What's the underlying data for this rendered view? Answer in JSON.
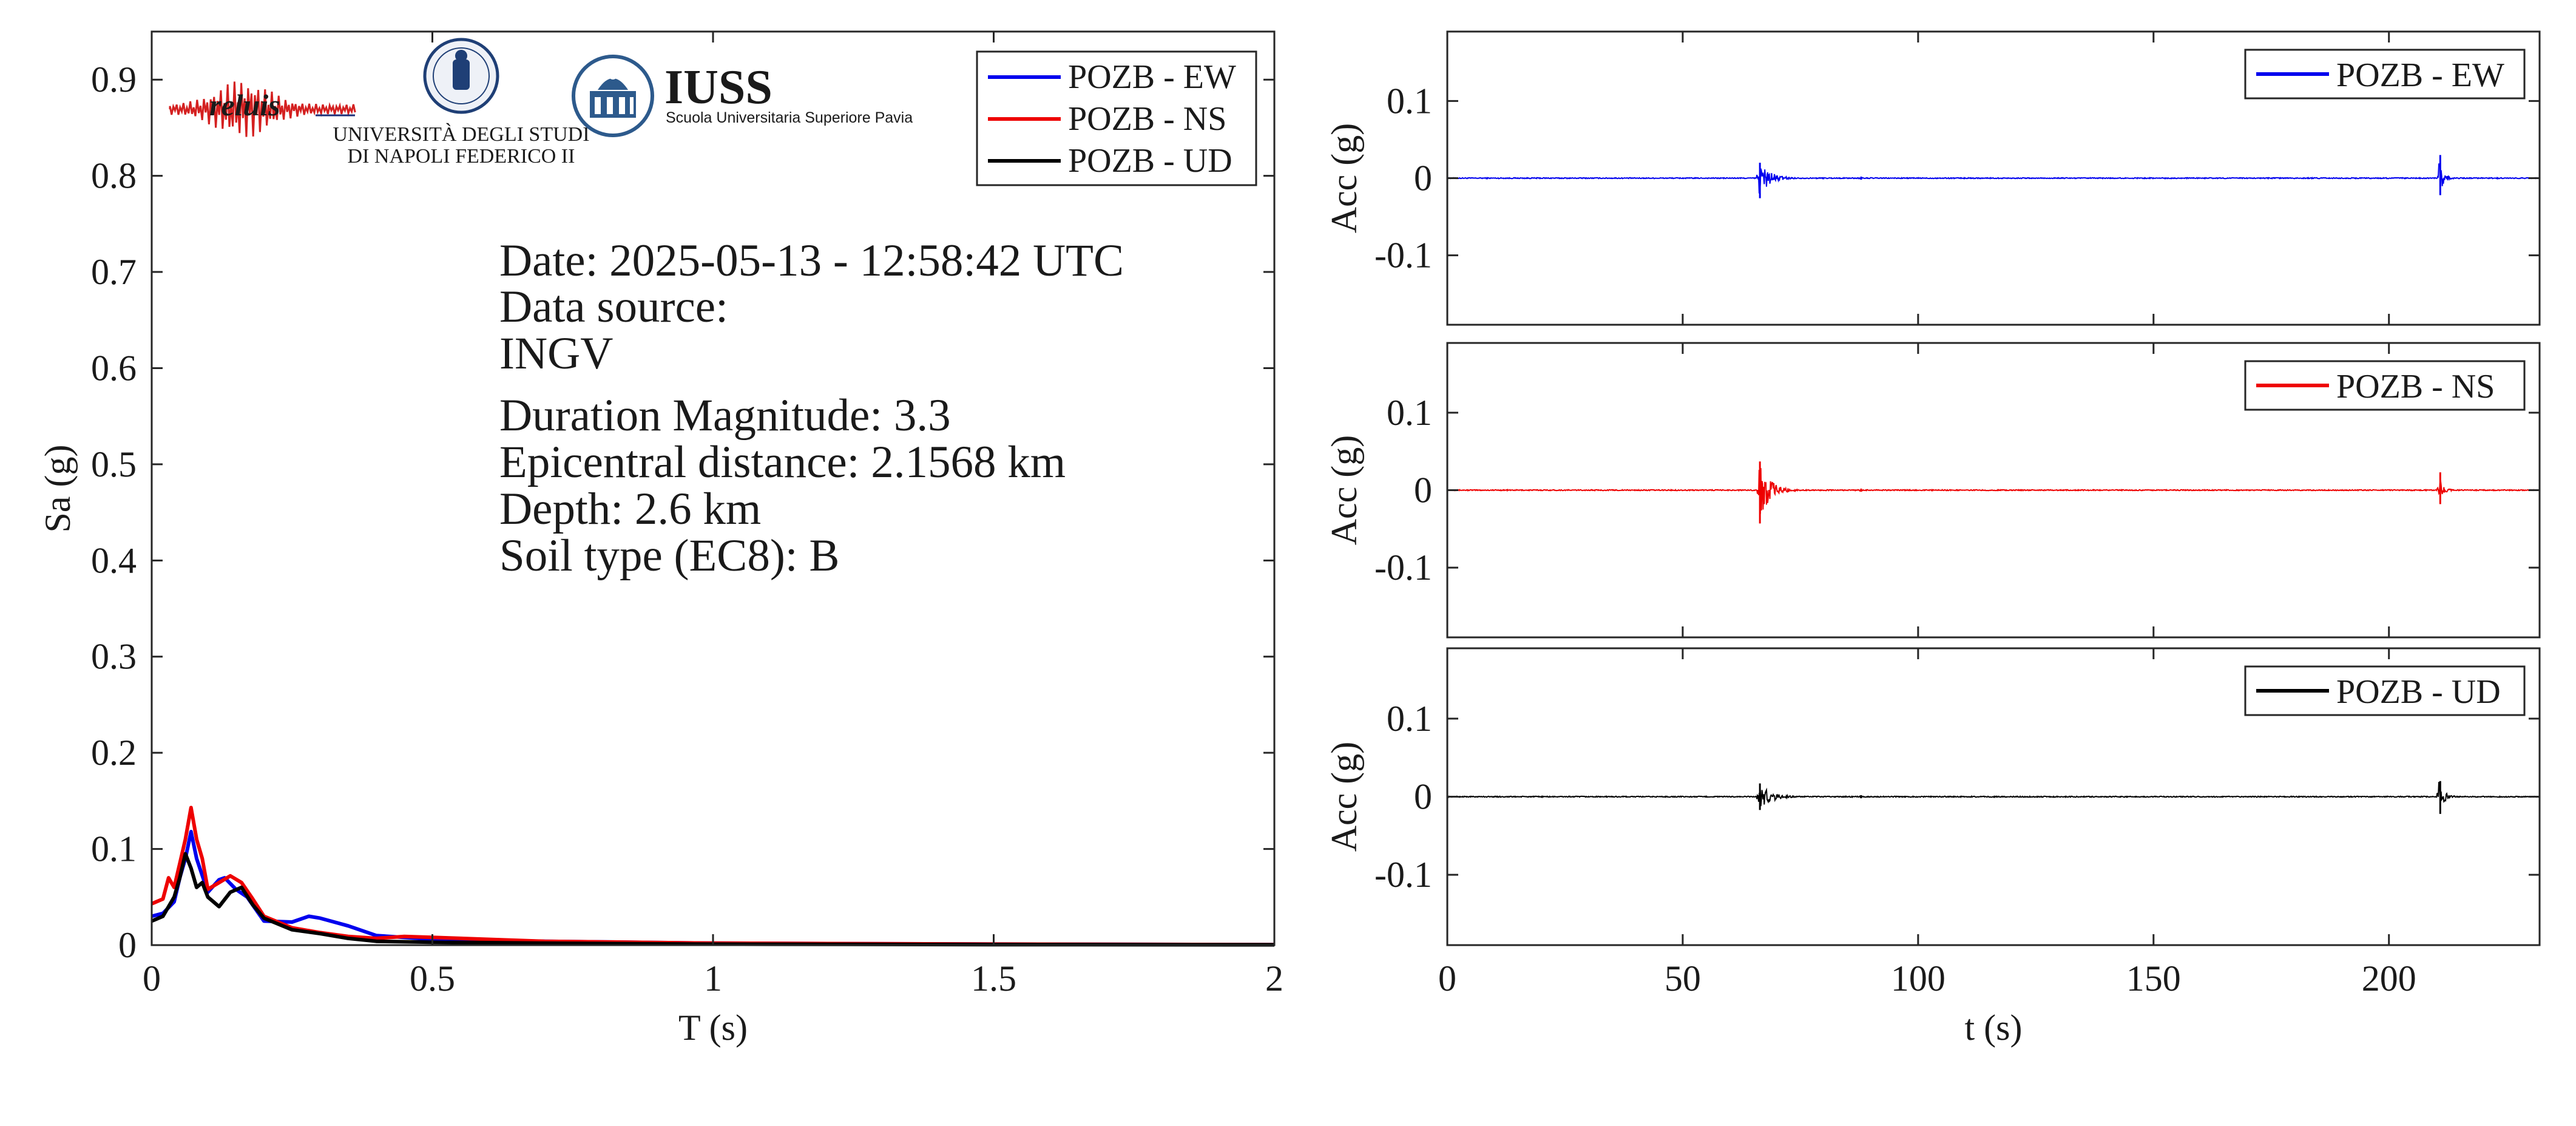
{
  "colors": {
    "ew": "#0000ee",
    "ns": "#ee0000",
    "ud": "#000000",
    "axis": "#262626",
    "iuss": "#2d5a8c",
    "reluis": "#1d2f7a",
    "unina": "#1f3f76"
  },
  "logos": {
    "reluis": {
      "text": "reluis"
    },
    "unina": {
      "line1": "UNIVERSITÀ DEGLI STUDI",
      "line2": "DI NAPOLI FEDERICO II"
    },
    "iuss": {
      "name": "IUSS",
      "subtitle": "Scuola Universitaria Superiore Pavia"
    }
  },
  "info": {
    "date": "Date: 2025-05-13 - 12:58:42 UTC",
    "source_label": "Data source:",
    "source": "INGV",
    "magnitude": "Duration Magnitude: 3.3",
    "distance": "Epicentral distance: 2.1568 km",
    "depth": "Depth: 2.6 km",
    "soil": "Soil type (EC8): B"
  },
  "chart_data": [
    {
      "type": "line",
      "xlabel": "T (s)",
      "ylabel": "Sa (g)",
      "xlim": [
        0,
        2
      ],
      "ylim": [
        0,
        0.95
      ],
      "xticks": [
        0,
        0.5,
        1,
        1.5,
        2
      ],
      "xtick_labels": [
        "0",
        "0.5",
        "1",
        "1.5",
        "2"
      ],
      "yticks": [
        0,
        0.1,
        0.2,
        0.3,
        0.4,
        0.5,
        0.6,
        0.7,
        0.8,
        0.9
      ],
      "ytick_labels": [
        "0",
        "0.1",
        "0.2",
        "0.3",
        "0.4",
        "0.5",
        "0.6",
        "0.7",
        "0.8",
        "0.9"
      ],
      "grid": false,
      "legend": "top-right",
      "series": [
        {
          "name": "POZB - EW",
          "color": "#0000ee",
          "x": [
            0,
            0.02,
            0.04,
            0.05,
            0.06,
            0.07,
            0.08,
            0.1,
            0.12,
            0.13,
            0.15,
            0.17,
            0.2,
            0.25,
            0.28,
            0.3,
            0.35,
            0.4,
            0.5,
            0.7,
            1.0,
            1.5,
            2.0
          ],
          "y": [
            0.03,
            0.033,
            0.045,
            0.07,
            0.09,
            0.118,
            0.09,
            0.055,
            0.068,
            0.07,
            0.058,
            0.05,
            0.025,
            0.024,
            0.03,
            0.028,
            0.02,
            0.01,
            0.006,
            0.004,
            0.002,
            0.001,
            0.0005
          ]
        },
        {
          "name": "POZB - NS",
          "color": "#ee0000",
          "x": [
            0,
            0.02,
            0.03,
            0.04,
            0.05,
            0.06,
            0.07,
            0.08,
            0.09,
            0.1,
            0.12,
            0.14,
            0.16,
            0.18,
            0.2,
            0.25,
            0.3,
            0.35,
            0.4,
            0.45,
            0.5,
            0.7,
            1.0,
            1.5,
            2.0
          ],
          "y": [
            0.043,
            0.048,
            0.07,
            0.06,
            0.085,
            0.11,
            0.143,
            0.11,
            0.09,
            0.058,
            0.065,
            0.072,
            0.065,
            0.048,
            0.03,
            0.018,
            0.013,
            0.009,
            0.007,
            0.009,
            0.008,
            0.004,
            0.002,
            0.001,
            0.0005
          ]
        },
        {
          "name": "POZB - UD",
          "color": "#000000",
          "x": [
            0,
            0.02,
            0.04,
            0.05,
            0.06,
            0.07,
            0.08,
            0.09,
            0.1,
            0.11,
            0.12,
            0.14,
            0.16,
            0.18,
            0.2,
            0.25,
            0.3,
            0.35,
            0.4,
            0.5,
            0.7,
            1.0,
            1.5,
            2.0
          ],
          "y": [
            0.025,
            0.03,
            0.05,
            0.07,
            0.095,
            0.08,
            0.06,
            0.065,
            0.05,
            0.045,
            0.04,
            0.055,
            0.06,
            0.042,
            0.028,
            0.016,
            0.012,
            0.007,
            0.004,
            0.003,
            0.002,
            0.001,
            0.0005,
            0.0003
          ]
        }
      ]
    },
    {
      "type": "line",
      "xlabel": "",
      "ylabel": "Acc (g)",
      "xlim": [
        0,
        232
      ],
      "ylim": [
        -0.19,
        0.19
      ],
      "yticks": [
        0.1,
        0,
        -0.1
      ],
      "ytick_labels": [
        "0.1",
        "0",
        "-0.1"
      ],
      "legend": "top-right",
      "series": [
        {
          "name": "POZB - EW",
          "color": "#0000ee",
          "bursts": [
            {
              "t": 66,
              "peak": 0.02,
              "trough": -0.026,
              "duration": 10
            },
            {
              "t": 210.5,
              "peak": 0.03,
              "trough": -0.022,
              "duration": 4
            },
            {
              "t": 87.5,
              "peak": 0.002,
              "trough": -0.002,
              "duration": 0.6
            }
          ]
        }
      ]
    },
    {
      "type": "line",
      "xlabel": "",
      "ylabel": "Acc (g)",
      "xlim": [
        0,
        232
      ],
      "ylim": [
        -0.19,
        0.19
      ],
      "yticks": [
        0.1,
        0,
        -0.1
      ],
      "ytick_labels": [
        "0.1",
        "0",
        "-0.1"
      ],
      "legend": "top-right",
      "series": [
        {
          "name": "POZB - NS",
          "color": "#ee0000",
          "bursts": [
            {
              "t": 66,
              "peak": 0.037,
              "trough": -0.043,
              "duration": 10
            },
            {
              "t": 210.5,
              "peak": 0.023,
              "trough": -0.018,
              "duration": 4
            },
            {
              "t": 87.5,
              "peak": 0.002,
              "trough": -0.002,
              "duration": 0.6
            }
          ]
        }
      ]
    },
    {
      "type": "line",
      "xlabel": "t (s)",
      "ylabel": "Acc (g)",
      "xlim": [
        0,
        232
      ],
      "ylim": [
        -0.19,
        0.19
      ],
      "xticks": [
        0,
        50,
        100,
        150,
        200
      ],
      "xtick_labels": [
        "0",
        "50",
        "100",
        "150",
        "200"
      ],
      "yticks": [
        0.1,
        0,
        -0.1
      ],
      "ytick_labels": [
        "0.1",
        "0",
        "-0.1"
      ],
      "legend": "top-right",
      "series": [
        {
          "name": "POZB - UD",
          "color": "#000000",
          "bursts": [
            {
              "t": 66,
              "peak": 0.017,
              "trough": -0.017,
              "duration": 12
            },
            {
              "t": 210.5,
              "peak": 0.02,
              "trough": -0.022,
              "duration": 5
            },
            {
              "t": 87.5,
              "peak": 0.002,
              "trough": -0.002,
              "duration": 0.6
            }
          ]
        }
      ]
    }
  ]
}
